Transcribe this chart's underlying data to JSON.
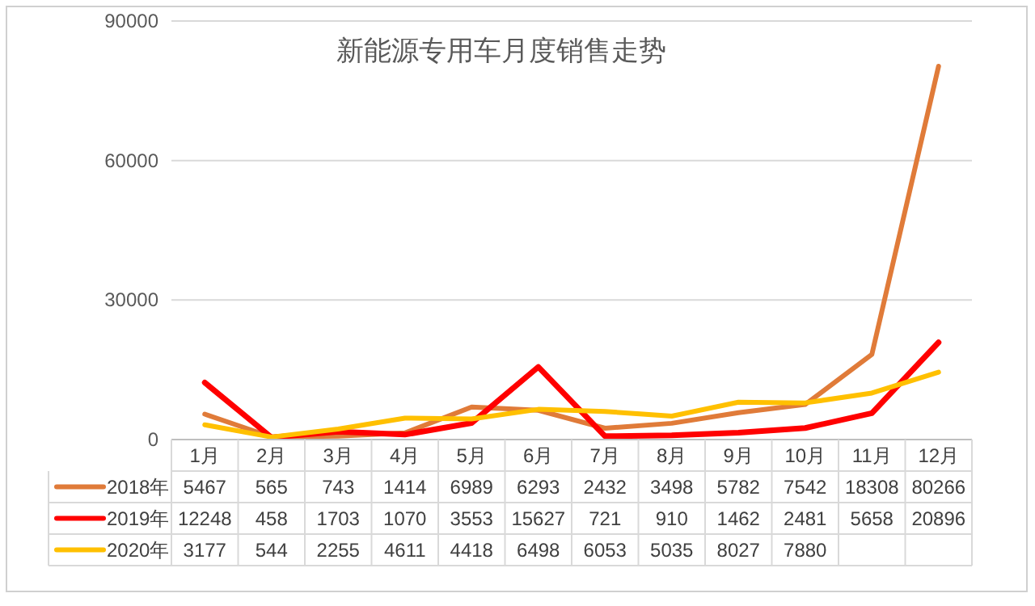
{
  "chart_data": {
    "type": "line",
    "title": "新能源专用车月度销售走势",
    "categories": [
      "1月",
      "2月",
      "3月",
      "4月",
      "5月",
      "6月",
      "7月",
      "8月",
      "9月",
      "10月",
      "11月",
      "12月"
    ],
    "series": [
      {
        "name": "2018年",
        "color": "#e07b39",
        "values": [
          5467,
          565,
          743,
          1414,
          6989,
          6293,
          2432,
          3498,
          5782,
          7542,
          18308,
          80266
        ]
      },
      {
        "name": "2019年",
        "color": "#ff0000",
        "values": [
          12248,
          458,
          1703,
          1070,
          3553,
          15627,
          721,
          910,
          1462,
          2481,
          5658,
          20896
        ]
      },
      {
        "name": "2020年",
        "color": "#ffc000",
        "values": [
          3177,
          544,
          2255,
          4611,
          4418,
          6498,
          6053,
          5035,
          8027,
          7880,
          10000,
          14500
        ],
        "value_labels": [
          "3177",
          "544",
          "2255",
          "4611",
          "4418",
          "6498",
          "6053",
          "5035",
          "8027",
          "7880",
          null,
          null
        ]
      }
    ],
    "ylim": [
      0,
      90000
    ],
    "yticks": [
      0,
      30000,
      60000,
      90000
    ],
    "grid": "y",
    "data_labels": true,
    "legend": "bottom",
    "marker": "none",
    "line_style": "solid"
  }
}
